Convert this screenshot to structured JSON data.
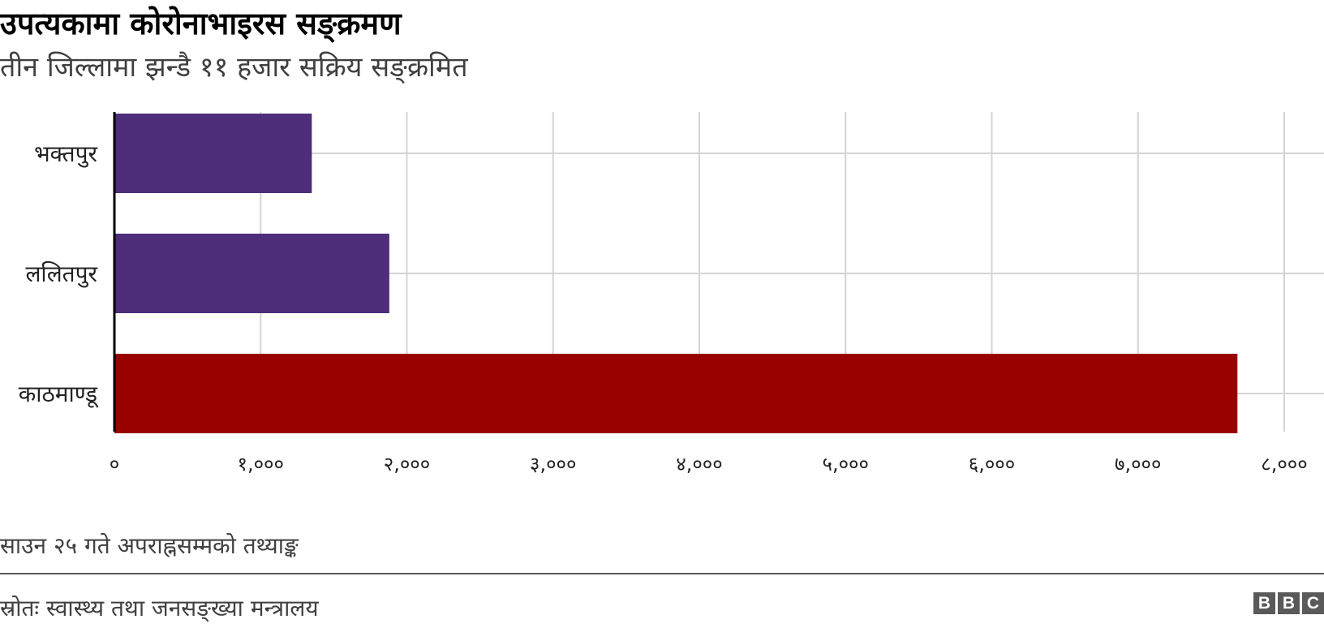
{
  "title": "उपत्यकामा कोरोनाभाइरस सङ्क्रमण",
  "subtitle": "तीन जिल्लामा झन्डै ११ हजार सक्रिय सङ्क्रमित",
  "note": "साउन २५ गते अपराह्नसम्मको तथ्याङ्क",
  "source": "स्रोतः स्वास्थ्य तथा जनसङ्ख्या मन्त्रालय",
  "logo": [
    "B",
    "B",
    "C"
  ],
  "colors": {
    "purple": "#4e2d7a",
    "red": "#990000",
    "grid": "#d4d4d4",
    "axis": "#000000"
  },
  "chart_data": {
    "type": "bar",
    "orientation": "horizontal",
    "categories": [
      "भक्तपुर",
      "ललितपुर",
      "काठमाण्डू"
    ],
    "values": [
      1350,
      1880,
      7680
    ],
    "bar_colors": [
      "#4e2d7a",
      "#4e2d7a",
      "#990000"
    ],
    "xlim": [
      0,
      8000
    ],
    "xticks": [
      0,
      1000,
      2000,
      3000,
      4000,
      5000,
      6000,
      7000,
      8000
    ],
    "xtick_labels": [
      "०",
      "१,०००",
      "२,०००",
      "३,०००",
      "४,०००",
      "५,०००",
      "६,०००",
      "७,०००",
      "८,०००"
    ],
    "grid": true
  }
}
